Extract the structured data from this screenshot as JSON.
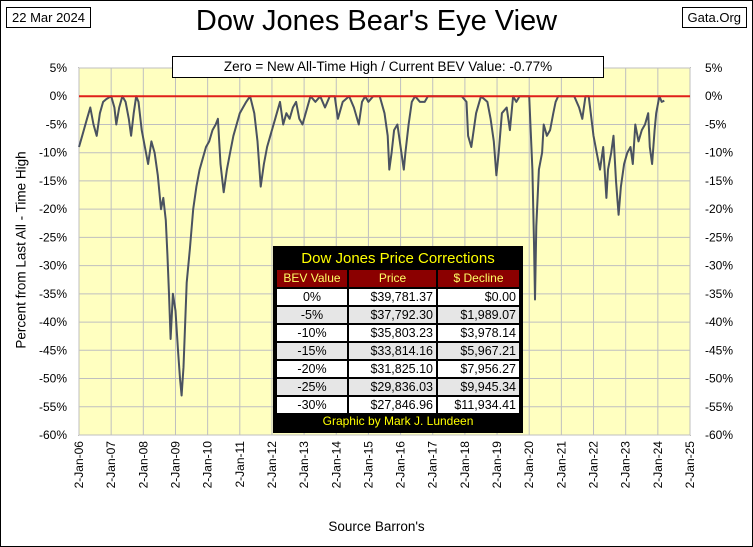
{
  "header": {
    "date": "22 Mar 2024",
    "title": "Dow Jones Bear's Eye View",
    "site": "Gata.Org",
    "note": "Zero = New All-Time High / Current BEV Value:  -0.77%"
  },
  "source_caption": "Source Barron's",
  "table": {
    "title": "Dow Jones Price Corrections",
    "headers": [
      "BEV Value",
      "Price",
      "$ Decline"
    ],
    "rows": [
      [
        "0%",
        "$39,781.37",
        "$0.00"
      ],
      [
        "-5%",
        "$37,792.30",
        "$1,989.07"
      ],
      [
        "-10%",
        "$35,803.23",
        "$3,978.14"
      ],
      [
        "-15%",
        "$33,814.16",
        "$5,967.21"
      ],
      [
        "-20%",
        "$31,825.10",
        "$7,956.27"
      ],
      [
        "-25%",
        "$29,836.03",
        "$9,945.34"
      ],
      [
        "-30%",
        "$27,846.96",
        "$11,934.41"
      ]
    ],
    "footer": "Graphic by Mark J. Lundeen"
  },
  "chart_data": {
    "type": "line",
    "title": "Dow Jones Bear's Eye View",
    "xlabel": "Source Barron's",
    "ylabel": "Percent from Last All - Time High",
    "ylim": [
      -60,
      5
    ],
    "yticks": [
      "5%",
      "0%",
      "-5%",
      "-10%",
      "-15%",
      "-20%",
      "-25%",
      "-30%",
      "-35%",
      "-40%",
      "-45%",
      "-50%",
      "-55%",
      "-60%"
    ],
    "xticks": [
      "2-Jan-06",
      "2-Jan-07",
      "2-Jan-08",
      "2-Jan-09",
      "2-Jan-10",
      "2-Jan-11",
      "2-Jan-12",
      "2-Jan-13",
      "2-Jan-14",
      "2-Jan-15",
      "2-Jan-16",
      "2-Jan-17",
      "2-Jan-18",
      "2-Jan-19",
      "2-Jan-20",
      "2-Jan-21",
      "2-Jan-22",
      "2-Jan-23",
      "2-Jan-24",
      "2-Jan-25"
    ],
    "xlim": [
      2006.0,
      2025.0
    ],
    "grid": true,
    "colors": {
      "background": "#ffffc0",
      "line": "#4a5260",
      "zero_line": "#e0201a",
      "grid": "#bfbfbf"
    },
    "series": [
      {
        "x": [
          2006.0,
          2006.1,
          2006.25,
          2006.35,
          2006.45,
          2006.55,
          2006.65,
          2006.75,
          2006.85,
          2007.0,
          2007.1,
          2007.16,
          2007.25,
          2007.35,
          2007.45,
          2007.55,
          2007.62,
          2007.7,
          2007.78,
          2007.85,
          2007.95,
          2008.05,
          2008.15,
          2008.25,
          2008.35,
          2008.45,
          2008.55,
          2008.62,
          2008.7,
          2008.75,
          2008.8,
          2008.85,
          2008.92,
          2009.0,
          2009.08,
          2009.14,
          2009.19,
          2009.25,
          2009.35,
          2009.45,
          2009.55,
          2009.65,
          2009.75,
          2009.85,
          2009.95,
          2010.05,
          2010.15,
          2010.25,
          2010.32,
          2010.4,
          2010.5,
          2010.6,
          2010.7,
          2010.8,
          2010.9,
          2011.0,
          2011.1,
          2011.2,
          2011.32,
          2011.45,
          2011.55,
          2011.65,
          2011.75,
          2011.85,
          2011.95,
          2012.1,
          2012.25,
          2012.35,
          2012.45,
          2012.55,
          2012.65,
          2012.75,
          2012.85,
          2012.95,
          2013.1,
          2013.2,
          2013.35,
          2013.5,
          2013.65,
          2013.8,
          2013.95,
          2014.05,
          2014.2,
          2014.4,
          2014.55,
          2014.7,
          2014.8,
          2014.9,
          2015.0,
          2015.15,
          2015.35,
          2015.5,
          2015.6,
          2015.65,
          2015.72,
          2015.8,
          2015.9,
          2016.0,
          2016.1,
          2016.15,
          2016.25,
          2016.35,
          2016.45,
          2016.6,
          2016.75,
          2016.85,
          2017.0,
          2017.3,
          2017.6,
          2017.9,
          2018.05,
          2018.1,
          2018.2,
          2018.35,
          2018.5,
          2018.7,
          2018.8,
          2018.9,
          2018.98,
          2019.05,
          2019.15,
          2019.3,
          2019.4,
          2019.5,
          2019.6,
          2019.7,
          2019.85,
          2020.0,
          2020.1,
          2020.15,
          2020.18,
          2020.22,
          2020.3,
          2020.4,
          2020.45,
          2020.55,
          2020.65,
          2020.75,
          2020.82,
          2020.9,
          2021.0,
          2021.2,
          2021.4,
          2021.55,
          2021.65,
          2021.75,
          2021.85,
          2022.0,
          2022.1,
          2022.2,
          2022.3,
          2022.4,
          2022.45,
          2022.55,
          2022.62,
          2022.7,
          2022.78,
          2022.85,
          2022.95,
          2023.05,
          2023.15,
          2023.22,
          2023.3,
          2023.4,
          2023.5,
          2023.6,
          2023.7,
          2023.75,
          2023.82,
          2023.9,
          2023.95,
          2024.05,
          2024.12,
          2024.2
        ],
        "values": [
          -9,
          -7,
          -4,
          -2,
          -5,
          -7,
          -3,
          -1,
          -0.5,
          0,
          -2,
          -5,
          -2,
          0,
          -1,
          -4,
          -7,
          -3,
          0,
          -1,
          -6,
          -9,
          -12,
          -8,
          -10,
          -14,
          -20,
          -18,
          -22,
          -28,
          -35,
          -43,
          -35,
          -38,
          -45,
          -50,
          -53,
          -48,
          -33,
          -27,
          -20,
          -16,
          -13,
          -11,
          -9,
          -8,
          -6,
          -5,
          -4,
          -12,
          -17,
          -13,
          -10,
          -7,
          -5,
          -3,
          -2,
          -1,
          0,
          -3,
          -8,
          -16,
          -12,
          -9,
          -7,
          -4,
          -1,
          -5,
          -3,
          -4,
          -2,
          -1,
          -4,
          -5,
          -2,
          0,
          -1,
          0,
          -2,
          0,
          0,
          -4,
          -1,
          0,
          -2,
          -5,
          -1,
          0,
          -1,
          0,
          0,
          -3,
          -7,
          -13,
          -10,
          -6,
          -5,
          -9,
          -13,
          -10,
          -5,
          -1,
          0,
          -1,
          -1,
          0,
          0,
          0,
          0,
          0,
          -1,
          -7,
          -9,
          -3,
          0,
          -1,
          -4,
          -8,
          -14,
          -10,
          -3,
          -2,
          -6,
          0,
          -1,
          0,
          0,
          0,
          -13,
          -26,
          -36,
          -23,
          -13,
          -10,
          -5,
          -7,
          -6,
          -3,
          -1,
          0,
          0,
          0,
          0,
          -2,
          -4,
          0,
          0,
          -7,
          -10,
          -13,
          -9,
          -18,
          -13,
          -10,
          -7,
          -15,
          -21,
          -16,
          -12,
          -10,
          -9,
          -12,
          -5,
          -8,
          -6,
          -5,
          -3,
          -9,
          -12,
          -6,
          -3,
          0,
          -1,
          -0.8
        ]
      }
    ]
  }
}
